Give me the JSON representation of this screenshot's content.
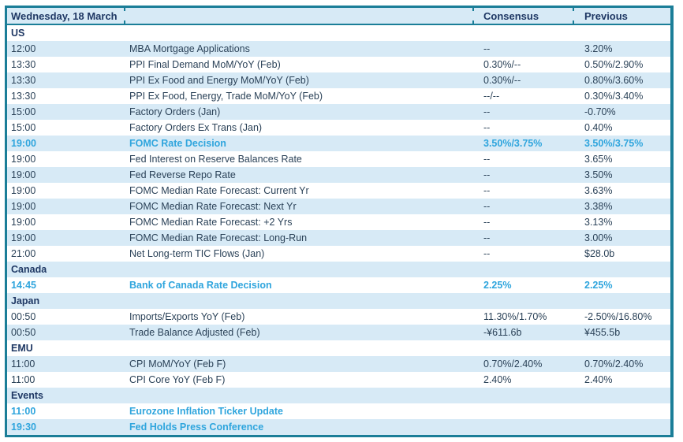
{
  "table": {
    "header": {
      "date": "Wednesday, 18 March",
      "consensus": "Consensus",
      "previous": "Previous"
    },
    "colors": {
      "border_teal": "#1B7E98",
      "row_alt_blue": "#D7EAF6",
      "header_navy": "#1F3864",
      "body_text": "#2B4258",
      "highlight_cyan": "#2FA5DD"
    },
    "rows": [
      {
        "type": "section",
        "label": "US"
      },
      {
        "type": "event",
        "time": "12:00",
        "event": "MBA Mortgage Applications",
        "consensus": "--",
        "previous": "3.20%",
        "highlight": false
      },
      {
        "type": "event",
        "time": "13:30",
        "event": "PPI Final Demand MoM/YoY (Feb)",
        "consensus": "0.30%/--",
        "previous": "0.50%/2.90%",
        "highlight": false
      },
      {
        "type": "event",
        "time": "13:30",
        "event": "PPI Ex Food and Energy MoM/YoY (Feb)",
        "consensus": "0.30%/--",
        "previous": "0.80%/3.60%",
        "highlight": false
      },
      {
        "type": "event",
        "time": "13:30",
        "event": "PPI Ex Food, Energy, Trade MoM/YoY (Feb)",
        "consensus": "--/--",
        "previous": "0.30%/3.40%",
        "highlight": false
      },
      {
        "type": "event",
        "time": "15:00",
        "event": "Factory Orders (Jan)",
        "consensus": "--",
        "previous": "-0.70%",
        "highlight": false
      },
      {
        "type": "event",
        "time": "15:00",
        "event": "Factory Orders Ex Trans (Jan)",
        "consensus": "--",
        "previous": "0.40%",
        "highlight": false
      },
      {
        "type": "event",
        "time": "19:00",
        "event": "FOMC Rate Decision",
        "consensus": "3.50%/3.75%",
        "previous": "3.50%/3.75%",
        "highlight": true
      },
      {
        "type": "event",
        "time": "19:00",
        "event": "Fed Interest on Reserve Balances Rate",
        "consensus": "--",
        "previous": "3.65%",
        "highlight": false
      },
      {
        "type": "event",
        "time": "19:00",
        "event": "Fed Reverse Repo Rate",
        "consensus": "--",
        "previous": "3.50%",
        "highlight": false
      },
      {
        "type": "event",
        "time": "19:00",
        "event": "FOMC Median Rate Forecast: Current Yr",
        "consensus": "--",
        "previous": "3.63%",
        "highlight": false
      },
      {
        "type": "event",
        "time": "19:00",
        "event": "FOMC Median Rate Forecast: Next Yr",
        "consensus": "--",
        "previous": "3.38%",
        "highlight": false
      },
      {
        "type": "event",
        "time": "19:00",
        "event": "FOMC Median Rate Forecast: +2 Yrs",
        "consensus": "--",
        "previous": "3.13%",
        "highlight": false
      },
      {
        "type": "event",
        "time": "19:00",
        "event": "FOMC Median Rate Forecast: Long-Run",
        "consensus": "--",
        "previous": "3.00%",
        "highlight": false
      },
      {
        "type": "event",
        "time": "21:00",
        "event": "Net Long-term TIC Flows (Jan)",
        "consensus": "--",
        "previous": "$28.0b",
        "highlight": false
      },
      {
        "type": "section",
        "label": "Canada"
      },
      {
        "type": "event",
        "time": "14:45",
        "event": "Bank of Canada Rate Decision",
        "consensus": "2.25%",
        "previous": "2.25%",
        "highlight": true
      },
      {
        "type": "section",
        "label": "Japan"
      },
      {
        "type": "event",
        "time": "00:50",
        "event": "Imports/Exports YoY (Feb)",
        "consensus": "11.30%/1.70%",
        "previous": "-2.50%/16.80%",
        "highlight": false
      },
      {
        "type": "event",
        "time": "00:50",
        "event": "Trade Balance Adjusted (Feb)",
        "consensus": "-¥611.6b",
        "previous": "¥455.5b",
        "highlight": false
      },
      {
        "type": "section",
        "label": "EMU"
      },
      {
        "type": "event",
        "time": "11:00",
        "event": "CPI MoM/YoY (Feb F)",
        "consensus": "0.70%/2.40%",
        "previous": "0.70%/2.40%",
        "highlight": false
      },
      {
        "type": "event",
        "time": "11:00",
        "event": "CPI Core YoY (Feb F)",
        "consensus": "2.40%",
        "previous": "2.40%",
        "highlight": false
      },
      {
        "type": "section",
        "label": "Events"
      },
      {
        "type": "event",
        "time": "11:00",
        "event": "Eurozone Inflation Ticker Update",
        "consensus": "",
        "previous": "",
        "highlight": true
      },
      {
        "type": "event",
        "time": "19:30",
        "event": "Fed Holds Press Conference",
        "consensus": "",
        "previous": "",
        "highlight": true
      }
    ]
  }
}
